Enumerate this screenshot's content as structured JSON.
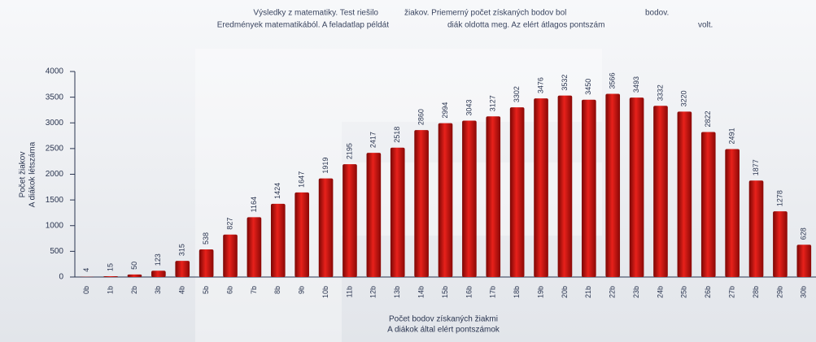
{
  "chart_data": {
    "type": "bar",
    "title": [
      [
        "Výsledky z matematiky. Test riešilo",
        "žiakov. Priemerný počet získaných bodov bol",
        "bodov."
      ],
      [
        "Eredmények matematikából. A feladatlap példát",
        "diák oldotta meg. Az elért átlagos pontszám",
        "volt."
      ]
    ],
    "y_label": [
      "Počet žiakov",
      "A diákok létszáma"
    ],
    "x_label": [
      "Počet bodov získaných žiakmi",
      "A diákok által elért pontszámok"
    ],
    "categories": [
      "0b",
      "1b",
      "2b",
      "3b",
      "4b",
      "5b",
      "6b",
      "7b",
      "8b",
      "9b",
      "10b",
      "11b",
      "12b",
      "13b",
      "14b",
      "15b",
      "16b",
      "17b",
      "18b",
      "19b",
      "20b",
      "21b",
      "22b",
      "23b",
      "24b",
      "25b",
      "26b",
      "27b",
      "28b",
      "29b",
      "30b"
    ],
    "values": [
      4,
      15,
      50,
      123,
      315,
      538,
      827,
      1164,
      1424,
      1647,
      1919,
      2195,
      2417,
      2518,
      2860,
      2994,
      3043,
      3127,
      3302,
      3476,
      3532,
      3450,
      3566,
      3493,
      3332,
      3220,
      2822,
      2491,
      1877,
      1278,
      628
    ],
    "color": "#c8100c",
    "ylim": [
      0,
      4000
    ],
    "yticks": [
      0,
      500,
      1000,
      1500,
      2000,
      2500,
      3000,
      3500,
      4000
    ]
  }
}
